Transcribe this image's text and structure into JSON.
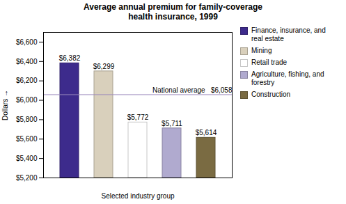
{
  "chart_data": {
    "type": "bar",
    "title": "Average annual premium for family-coverage\nhealth insurance, 1999",
    "categories": [
      "Finance, insurance, and\nreal estate",
      "Mining",
      "Retail trade",
      "Agriculture, fishing, and\nforestry",
      "Construction"
    ],
    "values": [
      6382,
      6299,
      5772,
      5711,
      5614
    ],
    "value_labels": [
      "$6,382",
      "$6,299",
      "$5,772",
      "$5,711",
      "$5,614"
    ],
    "data_labels": true,
    "colors": [
      "#3d2b8c",
      "#d9d0bc",
      "#ffffff",
      "#b0aacf",
      "#7a6b42"
    ],
    "ylim": [
      5200,
      6700
    ],
    "yticks": [
      {
        "value": 5200,
        "label": "$5,200"
      },
      {
        "value": 5400,
        "label": "$5,400"
      },
      {
        "value": 5600,
        "label": "$5,600"
      },
      {
        "value": 5800,
        "label": "$5,800"
      },
      {
        "value": 6000,
        "label": "$6,000"
      },
      {
        "value": 6200,
        "label": "$6,200"
      },
      {
        "value": 6400,
        "label": "$6,400"
      },
      {
        "value": 6600,
        "label": "$6,600"
      }
    ],
    "xlabel": "Selected industry group",
    "ylabel": "Dollars",
    "annotations": [
      {
        "y": 6058,
        "text": "National average   $6,058",
        "color": "#9988bb"
      }
    ],
    "legend": "upper right",
    "tick_labels": "y",
    "grid": false
  }
}
